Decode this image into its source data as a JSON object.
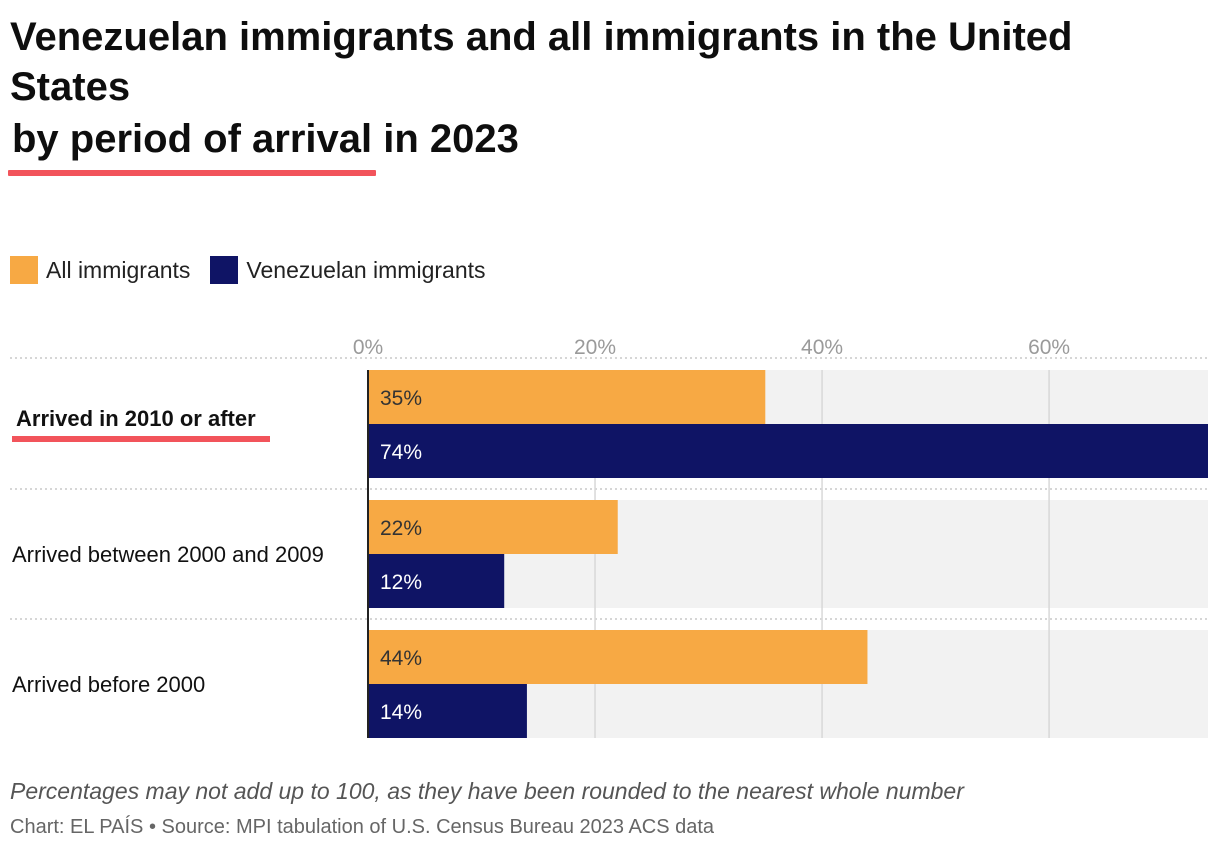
{
  "header": {
    "title_main": "Venezuelan immigrants and all immigrants in the United States",
    "title_highlight": "by period of arrival",
    "title_suffix": "in 2023"
  },
  "colors": {
    "all_immigrants": "#f7a944",
    "venezuelan": "#0f1465",
    "highlight_underline": "#f2545b",
    "bar_background": "#f2f2f2",
    "gridline": "#d8d8d8"
  },
  "legend": [
    {
      "label": "All immigrants",
      "color": "#f7a944"
    },
    {
      "label": "Venezuelan immigrants",
      "color": "#0f1465"
    }
  ],
  "chart_data": {
    "type": "bar",
    "orientation": "horizontal",
    "categories": [
      "Arrived in 2010 or after",
      "Arrived between 2000 and 2009",
      "Arrived before 2000"
    ],
    "highlighted_category": "Arrived in 2010 or after",
    "series": [
      {
        "name": "All immigrants",
        "values": [
          35,
          22,
          44
        ],
        "labels": [
          "35%",
          "22%",
          "44%"
        ],
        "label_color": "#333333"
      },
      {
        "name": "Venezuelan immigrants",
        "values": [
          74,
          12,
          14
        ],
        "labels": [
          "74%",
          "12%",
          "14%"
        ],
        "label_color": "#ffffff"
      }
    ],
    "x_ticks": [
      0,
      20,
      40,
      60
    ],
    "x_tick_labels": [
      "0%",
      "20%",
      "40%",
      "60%"
    ],
    "xlim": [
      0,
      74
    ],
    "title": "Venezuelan immigrants and all immigrants in the United States by period of arrival in 2023",
    "xlabel": "",
    "ylabel": ""
  },
  "footer": {
    "note": "Percentages may not add up to 100, as they have been rounded to the nearest whole number",
    "credit": "Chart: EL PAÍS • Source: MPI tabulation of U.S. Census Bureau 2023 ACS data"
  }
}
